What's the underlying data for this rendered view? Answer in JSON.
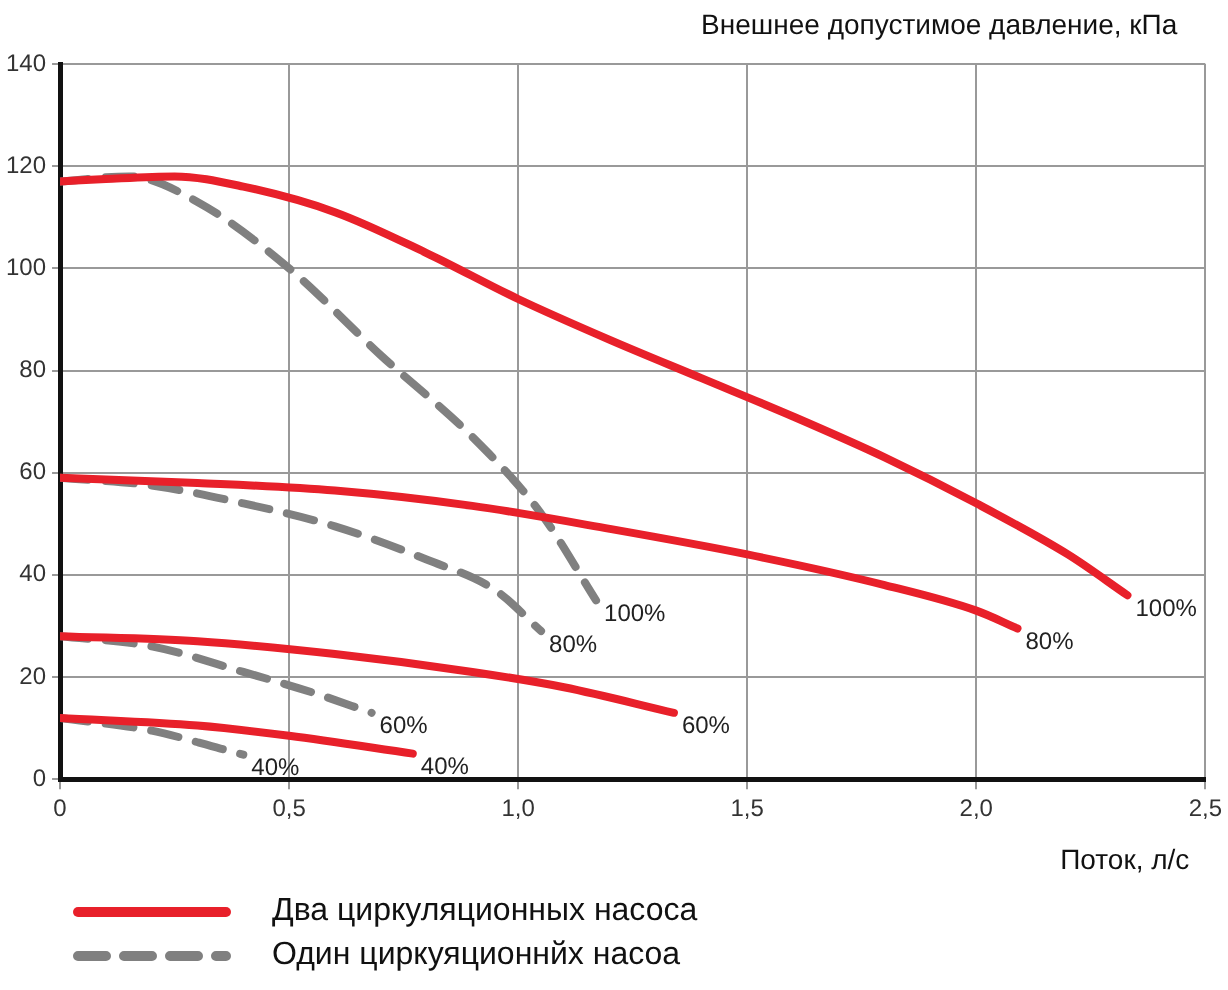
{
  "chart_data": {
    "type": "line",
    "xlabel": "Поток, л/с",
    "ylabel": "Внешнее допустимое давление, кПа",
    "xlim": [
      0,
      2.5
    ],
    "xticks": [
      0,
      {
        "value": 0.5,
        "label": "0,5"
      },
      {
        "value": 1,
        "label": "1,0"
      },
      {
        "value": 1.5,
        "label": "1,5"
      },
      {
        "value": 2,
        "label": "2,0"
      },
      {
        "value": 2.5,
        "label": "2,5"
      }
    ],
    "ylim": [
      0,
      140
    ],
    "yticks": [
      0,
      20,
      40,
      60,
      80,
      100,
      120,
      140
    ],
    "grid": true,
    "legend": "bottom left",
    "marker": "none",
    "series": [
      {
        "name": "Два циркуляционных насоса",
        "color": "#e8202a",
        "line_style": "solid",
        "x": [
          0,
          0.1,
          0.25,
          0.4,
          0.6,
          0.8,
          1.0,
          1.2,
          1.4,
          1.6,
          1.8,
          2.0,
          2.2,
          2.33
        ],
        "values": [
          117,
          117.5,
          118,
          116,
          111,
          103,
          94,
          86,
          78.5,
          71,
          63,
          54,
          44,
          36
        ]
      },
      {
        "color": "#e8202a",
        "line_style": "solid",
        "x": [
          0,
          0.3,
          0.6,
          0.9,
          1.2,
          1.5,
          1.8,
          2.0,
          2.09
        ],
        "values": [
          59,
          58,
          56.5,
          53.5,
          49,
          44,
          38,
          33,
          29.5
        ]
      },
      {
        "color": "#e8202a",
        "line_style": "solid",
        "x": [
          0,
          0.3,
          0.6,
          0.9,
          1.1,
          1.34
        ],
        "values": [
          28,
          27,
          24.5,
          21,
          18,
          13
        ]
      },
      {
        "color": "#e8202a",
        "line_style": "solid",
        "x": [
          0,
          0.3,
          0.5,
          0.77
        ],
        "values": [
          12,
          10.5,
          8.5,
          5
        ]
      },
      {
        "name": "Один циркуяционнйх насоа",
        "color": "#808080",
        "line_style": "dashed",
        "x": [
          0,
          0.15,
          0.3,
          0.5,
          0.7,
          0.9,
          1.05,
          1.17
        ],
        "values": [
          117,
          118,
          113,
          100,
          83,
          67,
          52,
          35
        ]
      },
      {
        "color": "#808080",
        "line_style": "dashed",
        "x": [
          0,
          0.2,
          0.4,
          0.6,
          0.8,
          0.95,
          1.05
        ],
        "values": [
          59,
          57.5,
          54,
          49.5,
          43,
          37,
          29
        ]
      },
      {
        "color": "#808080",
        "line_style": "dashed",
        "x": [
          0,
          0.2,
          0.4,
          0.55,
          0.68
        ],
        "values": [
          28,
          26,
          21,
          17,
          13
        ]
      },
      {
        "color": "#808080",
        "line_style": "dashed",
        "x": [
          0,
          0.2,
          0.35,
          0.4
        ],
        "values": [
          12,
          9.5,
          6,
          4.8
        ]
      }
    ],
    "annotations": [
      {
        "text": "100%",
        "x": 2.33,
        "y": 36
      },
      {
        "text": "80%",
        "x": 2.09,
        "y": 29.5
      },
      {
        "text": "60%",
        "x": 1.34,
        "y": 13
      },
      {
        "text": "40%",
        "x": 0.77,
        "y": 5
      },
      {
        "text": "100%",
        "x": 1.17,
        "y": 35
      },
      {
        "text": "80%",
        "x": 1.05,
        "y": 29
      },
      {
        "text": "60%",
        "x": 0.68,
        "y": 13
      },
      {
        "text": "40%",
        "x": 0.4,
        "y": 4.8
      }
    ]
  }
}
